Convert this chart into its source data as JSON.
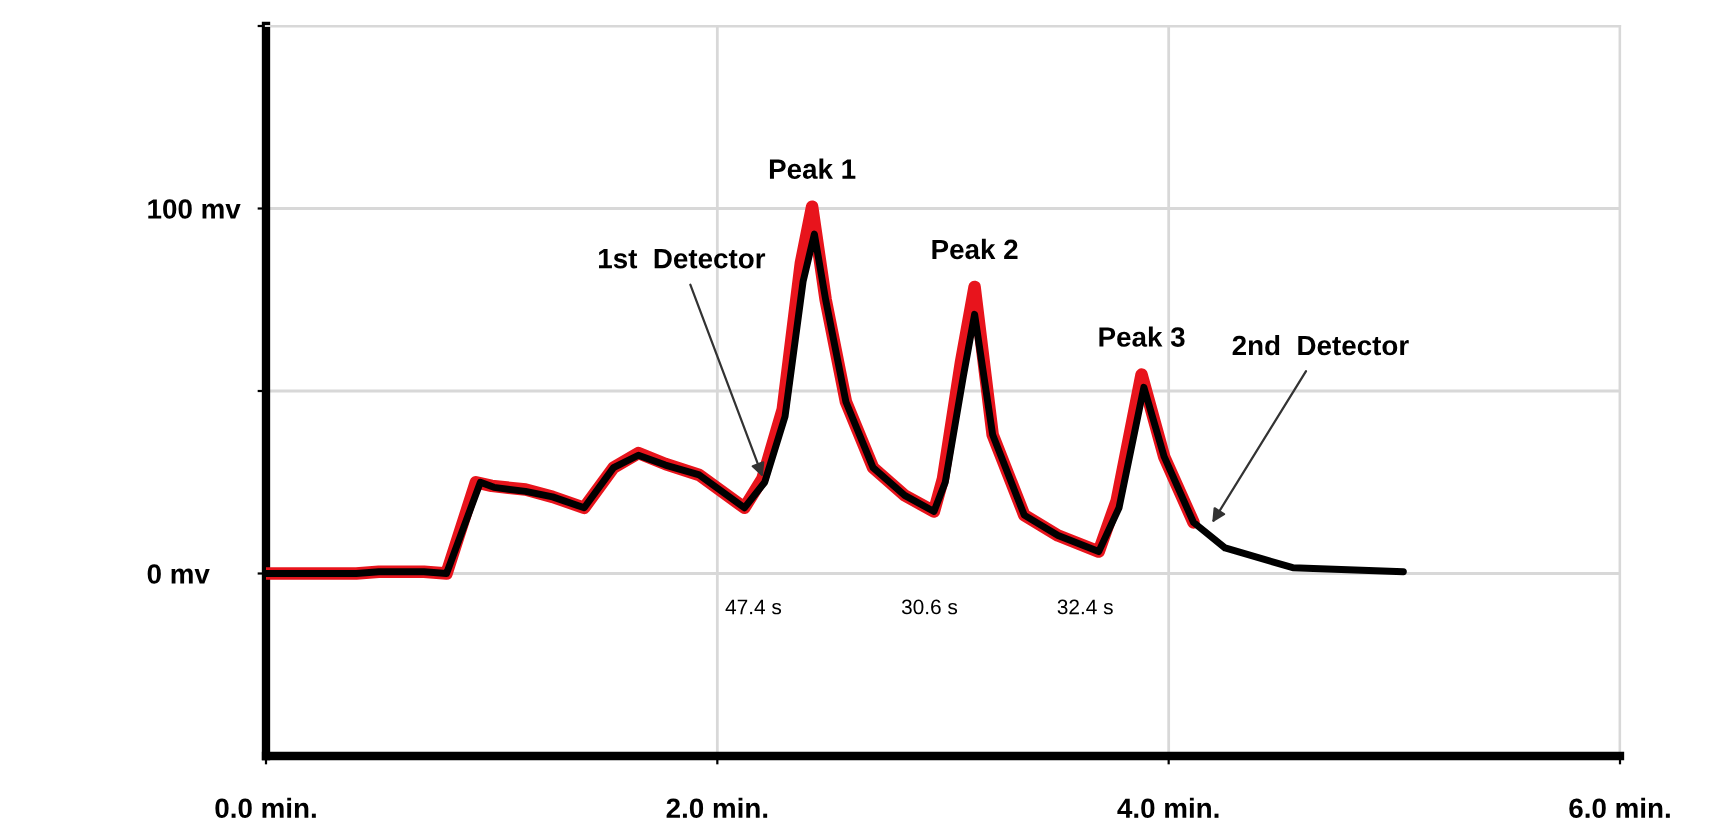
{
  "chart_data": {
    "type": "line",
    "xlim": [
      0,
      6
    ],
    "ylim": [
      -50,
      150
    ],
    "xticks": [
      {
        "value": 0,
        "label": "0.0 min."
      },
      {
        "value": 2,
        "label": "2.0 min."
      },
      {
        "value": 4,
        "label": "4.0 min."
      },
      {
        "value": 6,
        "label": "6.0 min."
      }
    ],
    "yticks": [
      {
        "value": 0,
        "label": "0 mv"
      },
      {
        "value": 50,
        "label": null
      },
      {
        "value": 100,
        "label": "100 mv"
      },
      {
        "value": 150,
        "label": null
      }
    ],
    "grid": true,
    "line_style": "solid",
    "marker": "none",
    "series": [
      {
        "color": "#e8141c",
        "x": [
          0,
          0.4,
          0.5,
          0.7,
          0.8,
          0.93,
          1.0,
          1.15,
          1.27,
          1.41,
          1.54,
          1.65,
          1.77,
          1.92,
          2.12,
          2.2,
          2.29,
          2.37,
          2.42,
          2.48,
          2.57,
          2.69,
          2.83,
          2.96,
          3.0,
          3.08,
          3.14,
          3.22,
          3.36,
          3.51,
          3.69,
          3.77,
          3.88,
          3.98,
          4.11
        ],
        "values": [
          0,
          0,
          0.5,
          0.5,
          0,
          25,
          24,
          23,
          21,
          18,
          29,
          33,
          30,
          27,
          18,
          26,
          45,
          85,
          100.5,
          75,
          47,
          29,
          21.4,
          17,
          26,
          58,
          78.5,
          38,
          16,
          10.4,
          6,
          20,
          54.5,
          32,
          14
        ]
      },
      {
        "color": "#000000",
        "x": [
          0,
          0.4,
          0.5,
          0.7,
          0.8,
          0.95,
          1.01,
          1.15,
          1.27,
          1.41,
          1.54,
          1.65,
          1.77,
          1.92,
          2.12,
          2.21,
          2.3,
          2.38,
          2.43,
          2.48,
          2.57,
          2.69,
          2.83,
          2.96,
          3.01,
          3.09,
          3.14,
          3.22,
          3.36,
          3.51,
          3.69,
          3.78,
          3.89,
          3.98,
          4.11,
          4.25,
          4.55,
          5.04
        ],
        "values": [
          0,
          0,
          0.5,
          0.5,
          0,
          25,
          23.6,
          22.5,
          21,
          18,
          29,
          32.4,
          29.7,
          27,
          18,
          25,
          43,
          80,
          93,
          75,
          47,
          29,
          21.4,
          17,
          25,
          54,
          71,
          38,
          16,
          10.4,
          6,
          18,
          51,
          32,
          14,
          7,
          1.6,
          0.5
        ]
      }
    ],
    "annotations": [
      {
        "text": "Peak 1",
        "x": 2.42,
        "y": 100.5
      },
      {
        "text": "Peak 2",
        "x": 3.14,
        "y": 78.5
      },
      {
        "text": "Peak 3",
        "x": 3.88,
        "y": 54.5
      },
      {
        "text": "1st  Detector",
        "x": 2.21,
        "y": 25
      },
      {
        "text": "2nd  Detector",
        "x": 4.18,
        "y": 12.6
      },
      "47.4 s",
      "30.6 s",
      "32.4 s"
    ]
  }
}
